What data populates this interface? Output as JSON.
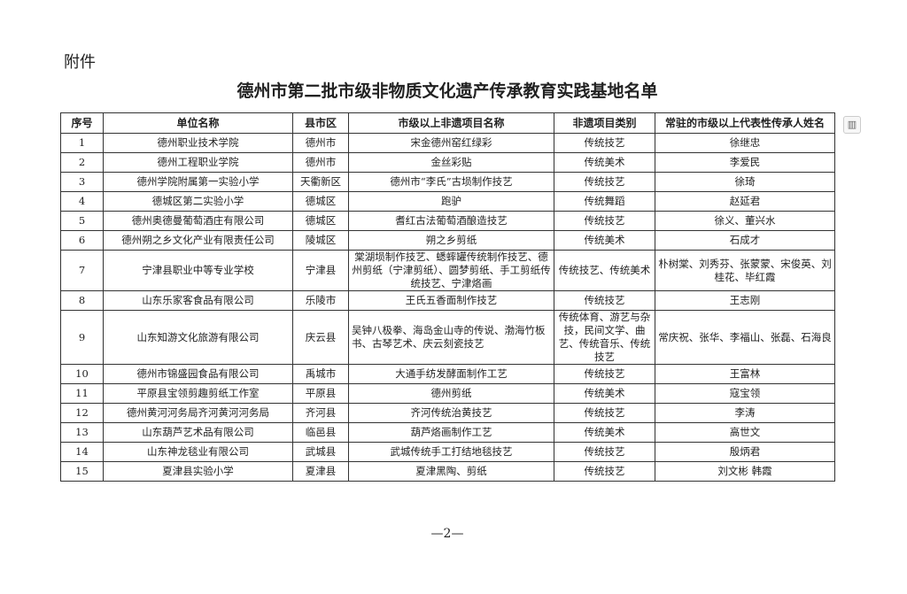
{
  "attachment_label": "附件",
  "title": "德州市第二批市级非物质文化遗产传承教育实践基地名单",
  "table": {
    "headers": [
      "序号",
      "单位名称",
      "县市区",
      "市级以上非遗项目名称",
      "非遗项目类别",
      "常驻的市级以上代表性传承人姓名"
    ],
    "rows": [
      [
        "1",
        "德州职业技术学院",
        "德州市",
        "宋金德州窑红绿彩",
        "传统技艺",
        "徐继忠"
      ],
      [
        "2",
        "德州工程职业学院",
        "德州市",
        "金丝彩贴",
        "传统美术",
        "李爱民"
      ],
      [
        "3",
        "德州学院附属第一实验小学",
        "天衢新区",
        "德州市“李氏”古埙制作技艺",
        "传统技艺",
        "徐琦"
      ],
      [
        "4",
        "德城区第二实验小学",
        "德城区",
        "跑驴",
        "传统舞蹈",
        "赵延君"
      ],
      [
        "5",
        "德州奥德曼葡萄酒庄有限公司",
        "德城区",
        "耆红古法葡萄酒酿造技艺",
        "传统技艺",
        "徐义、董兴水"
      ],
      [
        "6",
        "德州朔之乡文化产业有限责任公司",
        "陵城区",
        "朔之乡剪纸",
        "传统美术",
        "石成才"
      ],
      [
        "7",
        "宁津县职业中等专业学校",
        "宁津县",
        "棠湖埙制作技艺、蟋蟀罐传统制作技艺、德州剪纸（宁津剪纸）、圆梦剪纸、手工剪纸传统技艺、宁津烙画",
        "传统技艺、传统美术",
        "朴树棠、刘秀芬、张蒙蒙、宋俊英、刘桂花、毕红霞"
      ],
      [
        "8",
        "山东乐家客食品有限公司",
        "乐陵市",
        "王氏五香面制作技艺",
        "传统技艺",
        "王志刚"
      ],
      [
        "9",
        "山东知游文化旅游有限公司",
        "庆云县",
        "吴钟八极拳、海岛金山寺的传说、渤海竹板书、古琴艺术、庆云刻瓷技艺",
        "传统体育、游艺与杂技，民间文学、曲艺、传统音乐、传统技艺",
        "常庆祝、张华、李福山、张磊、石海良"
      ],
      [
        "10",
        "德州市锦盛园食品有限公司",
        "禹城市",
        "大通手纺发酵面制作工艺",
        "传统技艺",
        "王富林"
      ],
      [
        "11",
        "平原县宝领剪趣剪纸工作室",
        "平原县",
        "德州剪纸",
        "传统美术",
        "寇宝领"
      ],
      [
        "12",
        "德州黄河河务局齐河黄河河务局",
        "齐河县",
        "齐河传统治黄技艺",
        "传统技艺",
        "李涛"
      ],
      [
        "13",
        "山东葫芦艺术品有限公司",
        "临邑县",
        "葫芦烙画制作工艺",
        "传统美术",
        "高世文"
      ],
      [
        "14",
        "山东神龙毯业有限公司",
        "武城县",
        "武城传统手工打结地毯技艺",
        "传统技艺",
        "殷炳君"
      ],
      [
        "15",
        "夏津县实验小学",
        "夏津县",
        "夏津黑陶、剪纸",
        "传统技艺",
        "刘文彬 韩霞"
      ]
    ]
  },
  "page_number": "—2—",
  "side_icon": "fit-page-icon"
}
